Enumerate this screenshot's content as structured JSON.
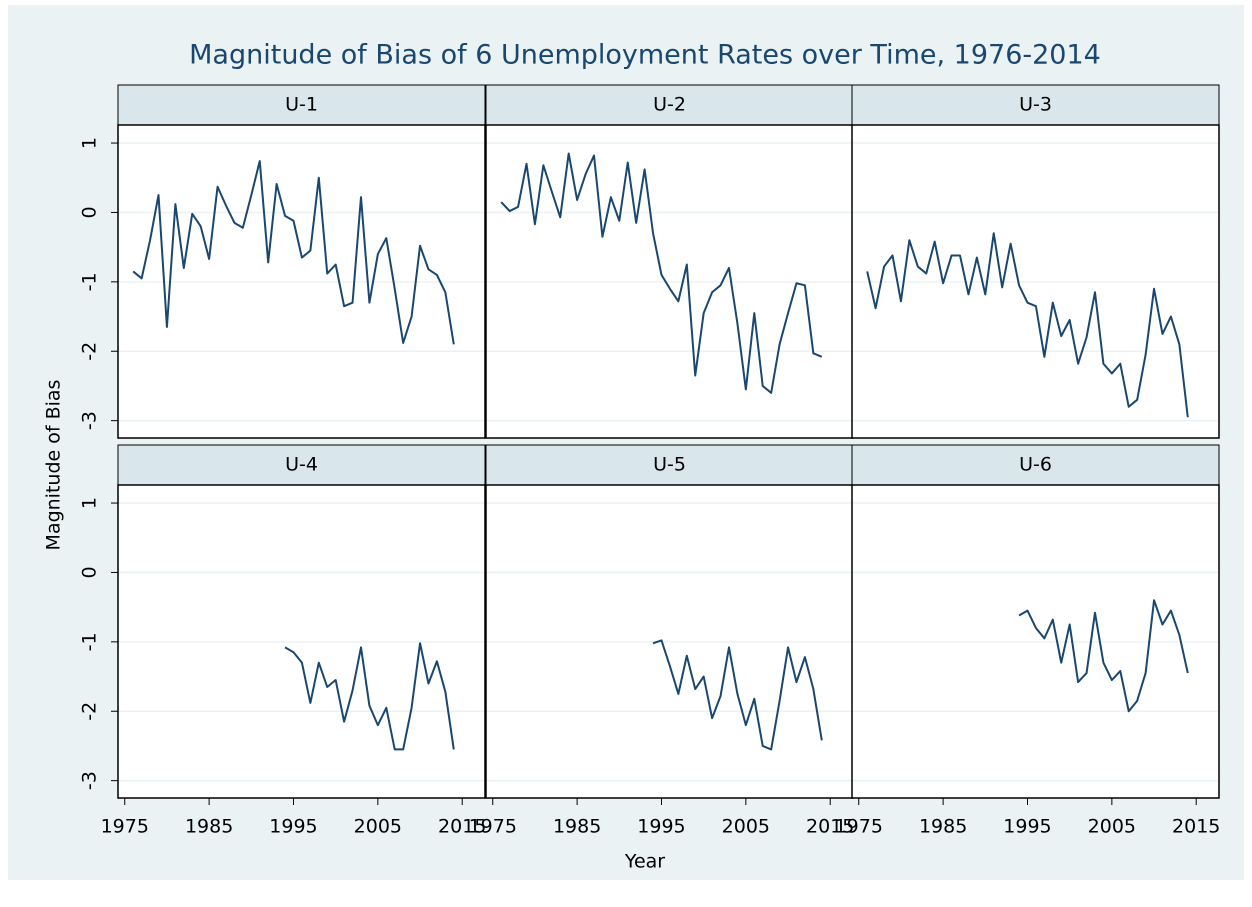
{
  "chart_data": {
    "type": "line",
    "title": "Magnitude of Bias of 6 Unemployment Rates over Time, 1976-2014",
    "x_label": "Year",
    "y_label": "Magnitude of Bias",
    "x": [
      1976,
      1977,
      1978,
      1979,
      1980,
      1981,
      1982,
      1983,
      1984,
      1985,
      1986,
      1987,
      1988,
      1989,
      1990,
      1991,
      1992,
      1993,
      1994,
      1995,
      1996,
      1997,
      1998,
      1999,
      2000,
      2001,
      2002,
      2003,
      2004,
      2005,
      2006,
      2007,
      2008,
      2009,
      2010,
      2011,
      2012,
      2013,
      2014
    ],
    "series": [
      {
        "name": "U-1",
        "color": "#1a476f",
        "values": [
          -0.85,
          -0.95,
          -0.4,
          0.25,
          -1.65,
          0.12,
          -0.8,
          -0.02,
          -0.2,
          -0.67,
          0.37,
          0.1,
          -0.15,
          -0.22,
          0.25,
          0.74,
          -0.72,
          0.41,
          -0.05,
          -0.12,
          -0.65,
          -0.55,
          0.5,
          -0.88,
          -0.75,
          -1.35,
          -1.3,
          0.22,
          -1.3,
          -0.6,
          -0.37,
          -1.1,
          -1.88,
          -1.5,
          -0.48,
          -0.82,
          -0.9,
          -1.15,
          -1.9
        ]
      },
      {
        "name": "U-2",
        "color": "#1a476f",
        "values": [
          0.15,
          0.02,
          0.08,
          0.7,
          -0.17,
          0.68,
          0.3,
          -0.07,
          0.85,
          0.18,
          0.55,
          0.82,
          -0.35,
          0.22,
          -0.12,
          0.72,
          -0.15,
          0.62,
          -0.3,
          -0.9,
          -1.1,
          -1.28,
          -0.75,
          -2.35,
          -1.45,
          -1.15,
          -1.05,
          -0.8,
          -1.6,
          -2.55,
          -1.45,
          -2.5,
          -2.6,
          -1.9,
          -1.45,
          -1.02,
          -1.05,
          -2.03,
          -2.08
        ]
      },
      {
        "name": "U-3",
        "color": "#1a476f",
        "values": [
          -0.85,
          -1.38,
          -0.78,
          -0.62,
          -1.28,
          -0.4,
          -0.78,
          -0.88,
          -0.42,
          -1.02,
          -0.62,
          -0.62,
          -1.18,
          -0.65,
          -1.18,
          -0.3,
          -1.08,
          -0.45,
          -1.05,
          -1.3,
          -1.35,
          -2.08,
          -1.3,
          -1.78,
          -1.55,
          -2.18,
          -1.8,
          -1.15,
          -2.18,
          -2.32,
          -2.18,
          -2.8,
          -2.7,
          -2.05,
          -1.1,
          -1.75,
          -1.5,
          -1.9,
          -2.95
        ]
      },
      {
        "name": "U-4",
        "color": "#1a476f",
        "values": [
          null,
          null,
          null,
          null,
          null,
          null,
          null,
          null,
          null,
          null,
          null,
          null,
          null,
          null,
          null,
          null,
          null,
          null,
          -1.08,
          -1.15,
          -1.3,
          -1.88,
          -1.3,
          -1.65,
          -1.55,
          -2.15,
          -1.7,
          -1.08,
          -1.92,
          -2.2,
          -1.95,
          -2.55,
          -2.55,
          -1.95,
          -1.02,
          -1.6,
          -1.28,
          -1.72,
          -2.55
        ]
      },
      {
        "name": "U-5",
        "color": "#1a476f",
        "values": [
          null,
          null,
          null,
          null,
          null,
          null,
          null,
          null,
          null,
          null,
          null,
          null,
          null,
          null,
          null,
          null,
          null,
          null,
          -1.02,
          -0.98,
          -1.35,
          -1.75,
          -1.2,
          -1.68,
          -1.5,
          -2.1,
          -1.78,
          -1.08,
          -1.75,
          -2.2,
          -1.82,
          -2.5,
          -2.55,
          -1.85,
          -1.08,
          -1.58,
          -1.22,
          -1.68,
          -2.42
        ]
      },
      {
        "name": "U-6",
        "color": "#1a476f",
        "values": [
          null,
          null,
          null,
          null,
          null,
          null,
          null,
          null,
          null,
          null,
          null,
          null,
          null,
          null,
          null,
          null,
          null,
          null,
          -0.62,
          -0.55,
          -0.8,
          -0.95,
          -0.68,
          -1.3,
          -0.75,
          -1.58,
          -1.45,
          -0.58,
          -1.3,
          -1.55,
          -1.42,
          -2.0,
          -1.85,
          -1.45,
          -0.4,
          -0.75,
          -0.55,
          -0.9,
          -1.45
        ]
      }
    ],
    "xlim": [
      1974.2,
      2017.7
    ],
    "xticks": [
      1975,
      1985,
      1995,
      2005,
      2015
    ],
    "ylim": [
      -3.25,
      1.26
    ],
    "yticks": [
      -3,
      -2,
      -1,
      0,
      1
    ],
    "grid": true
  }
}
